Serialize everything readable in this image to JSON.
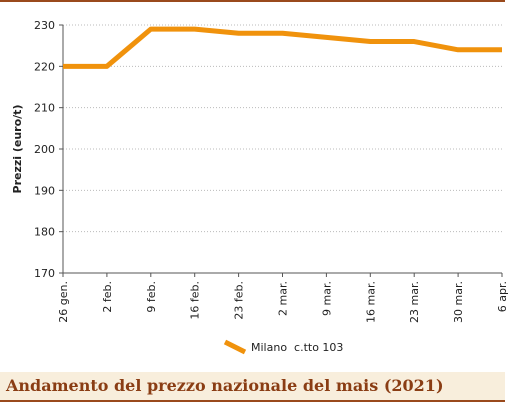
{
  "chart_data": {
    "type": "line",
    "title": "Andamento del prezzo nazionale del mais (2021)",
    "y_label": "Prezzi (euro/t)",
    "categories": [
      "26 gen.",
      "2 feb.",
      "9 feb.",
      "16 feb.",
      "23 feb.",
      "2 mar.",
      "9 mar.",
      "16 mar.",
      "23 mar.",
      "30 mar.",
      "6 apr."
    ],
    "series": [
      {
        "name": "Milano  c.tto 103",
        "color": "#f0920c",
        "values": [
          220,
          220,
          229,
          229,
          228,
          228,
          227,
          226,
          226,
          224,
          224
        ]
      }
    ],
    "ylim": [
      170,
      230
    ],
    "yticks": [
      170,
      180,
      190,
      200,
      210,
      220,
      230
    ],
    "grid": true,
    "legend": "bottom"
  }
}
